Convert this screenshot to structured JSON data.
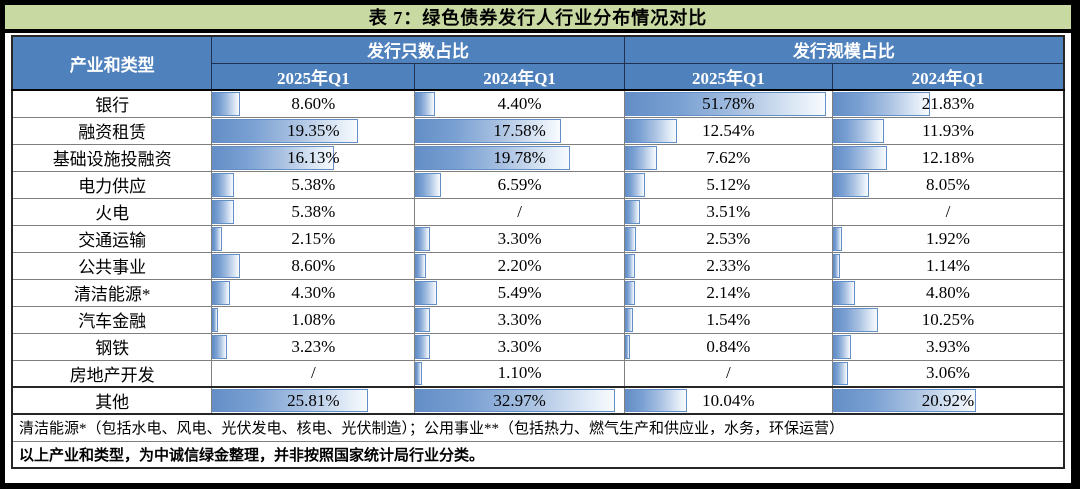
{
  "title": "表 7：绿色债券发行人行业分布情况对比",
  "colors": {
    "title_background": "#c8d9a2",
    "header_background": "#4f81bd",
    "header_text": "#ffffff",
    "bar_border": "#638ec6",
    "bar_gradient_start": "#638ec6",
    "bar_gradient_end": "#f8fbfe",
    "grid_line": "#7f7f7f",
    "frame": "#000000"
  },
  "table": {
    "corner_header": "产业和类型",
    "group_headers": [
      "发行只数占比",
      "发行规模占比"
    ],
    "year_headers": [
      "2025年Q1",
      "2024年Q1",
      "2025年Q1",
      "2024年Q1"
    ],
    "rows": [
      {
        "label": "银行",
        "cells": [
          {
            "value": "8.60%",
            "bar": 0.135
          },
          {
            "value": "4.40%",
            "bar": 0.095
          },
          {
            "value": "51.78%",
            "bar": 0.97
          },
          {
            "value": "21.83%",
            "bar": 0.42
          }
        ]
      },
      {
        "label": "融资租赁",
        "cells": [
          {
            "value": "19.35%",
            "bar": 0.72
          },
          {
            "value": "17.58%",
            "bar": 0.7
          },
          {
            "value": "12.54%",
            "bar": 0.25
          },
          {
            "value": "11.93%",
            "bar": 0.22
          }
        ]
      },
      {
        "label": "基础设施投融资",
        "cells": [
          {
            "value": "16.13%",
            "bar": 0.6
          },
          {
            "value": "19.78%",
            "bar": 0.74
          },
          {
            "value": "7.62%",
            "bar": 0.155
          },
          {
            "value": "12.18%",
            "bar": 0.235
          }
        ]
      },
      {
        "label": "电力供应",
        "cells": [
          {
            "value": "5.38%",
            "bar": 0.105
          },
          {
            "value": "6.59%",
            "bar": 0.125
          },
          {
            "value": "5.12%",
            "bar": 0.1
          },
          {
            "value": "8.05%",
            "bar": 0.155
          }
        ]
      },
      {
        "label": "火电",
        "cells": [
          {
            "value": "5.38%",
            "bar": 0.105
          },
          {
            "value": "/",
            "bar": 0
          },
          {
            "value": "3.51%",
            "bar": 0.075
          },
          {
            "value": "/",
            "bar": 0
          }
        ]
      },
      {
        "label": "交通运输",
        "cells": [
          {
            "value": "2.15%",
            "bar": 0.05
          },
          {
            "value": "3.30%",
            "bar": 0.07
          },
          {
            "value": "2.53%",
            "bar": 0.055
          },
          {
            "value": "1.92%",
            "bar": 0.04
          }
        ]
      },
      {
        "label": "公共事业",
        "cells": [
          {
            "value": "8.60%",
            "bar": 0.135
          },
          {
            "value": "2.20%",
            "bar": 0.05
          },
          {
            "value": "2.33%",
            "bar": 0.05
          },
          {
            "value": "1.14%",
            "bar": 0.03
          }
        ]
      },
      {
        "label": "清洁能源*",
        "cells": [
          {
            "value": "4.30%",
            "bar": 0.085
          },
          {
            "value": "5.49%",
            "bar": 0.105
          },
          {
            "value": "2.14%",
            "bar": 0.05
          },
          {
            "value": "4.80%",
            "bar": 0.095
          }
        ]
      },
      {
        "label": "汽车金融",
        "cells": [
          {
            "value": "1.08%",
            "bar": 0.03
          },
          {
            "value": "3.30%",
            "bar": 0.07
          },
          {
            "value": "1.54%",
            "bar": 0.04
          },
          {
            "value": "10.25%",
            "bar": 0.195
          }
        ]
      },
      {
        "label": "钢铁",
        "cells": [
          {
            "value": "3.23%",
            "bar": 0.07
          },
          {
            "value": "3.30%",
            "bar": 0.07
          },
          {
            "value": "0.84%",
            "bar": 0.025
          },
          {
            "value": "3.93%",
            "bar": 0.08
          }
        ]
      },
      {
        "label": "房地产开发",
        "cells": [
          {
            "value": "/",
            "bar": 0
          },
          {
            "value": "1.10%",
            "bar": 0.03
          },
          {
            "value": "/",
            "bar": 0
          },
          {
            "value": "3.06%",
            "bar": 0.065
          }
        ]
      },
      {
        "label": "其他",
        "cells": [
          {
            "value": "25.81%",
            "bar": 0.77
          },
          {
            "value": "32.97%",
            "bar": 0.96
          },
          {
            "value": "10.04%",
            "bar": 0.3
          },
          {
            "value": "20.92%",
            "bar": 0.62
          }
        ]
      }
    ],
    "notes": [
      "清洁能源*（包括水电、风电、光伏发电、核电、光伏制造）；公用事业**（包括热力、燃气生产和供应业，水务，环保运营）",
      "以上产业和类型，为中诚信绿金整理，并非按照国家统计局行业分类。"
    ]
  }
}
